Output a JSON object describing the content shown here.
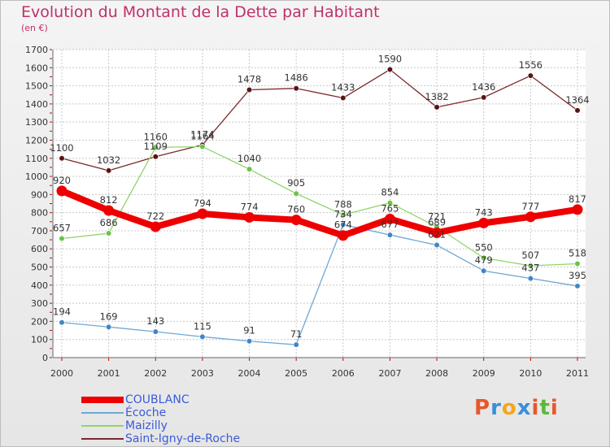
{
  "header": {
    "title": "Evolution du Montant de la Dette par Habitant",
    "subtitle": "(en €)"
  },
  "logo": {
    "text": "Proxiti",
    "colors": [
      "#e8572b",
      "#3a8fd9",
      "#f2a81d",
      "#3a8fd9",
      "#e8572b",
      "#5cb83a",
      "#e8572b"
    ]
  },
  "chart_data": {
    "type": "line",
    "x": [
      "2000",
      "2001",
      "2002",
      "2003",
      "2004",
      "2005",
      "2006",
      "2007",
      "2008",
      "2009",
      "2010",
      "2011"
    ],
    "ylim": [
      0,
      1700
    ],
    "yticks": [
      0,
      100,
      200,
      300,
      400,
      500,
      600,
      700,
      800,
      900,
      1000,
      1100,
      1200,
      1300,
      1400,
      1500,
      1600,
      1700
    ],
    "grid": true,
    "legend_position": "bottom-left",
    "series": [
      {
        "name": "Saint-Igny-de-Roche",
        "color": "#7a2a2a",
        "marker": "#5a1414",
        "values": [
          1100,
          1032,
          1109,
          1174,
          1478,
          1486,
          1433,
          1590,
          1382,
          1436,
          1556,
          1364
        ]
      },
      {
        "name": "Maizilly",
        "color": "#92d36a",
        "marker": "#6cc24a",
        "values": [
          657,
          686,
          1160,
          1164,
          1040,
          905,
          788,
          854,
          721,
          550,
          507,
          518
        ]
      },
      {
        "name": "Écoche",
        "color": "#6fa8d6",
        "marker": "#3f86c8",
        "values": [
          194,
          169,
          143,
          115,
          91,
          71,
          734,
          677,
          621,
          479,
          437,
          395
        ]
      },
      {
        "name": "COUBLANC",
        "color": "#ee0000",
        "marker": "#ee0000",
        "values": [
          920,
          812,
          722,
          794,
          774,
          760,
          674,
          765,
          689,
          743,
          777,
          817
        ]
      }
    ],
    "data_labels": [
      {
        "series": "Saint-Igny-de-Roche",
        "texts": [
          "1100",
          "1032",
          "1109",
          "1174",
          "1478",
          "1486",
          "1433",
          "1590",
          "1382",
          "1436",
          "1556",
          "1364"
        ]
      },
      {
        "series": "Maizilly",
        "texts": [
          "657",
          "686",
          "1160",
          "1164",
          "1040",
          "905",
          "788",
          "854",
          "721",
          "550",
          "507",
          "518"
        ]
      },
      {
        "series": "Écoche",
        "texts": [
          "194",
          "169",
          "143",
          "115",
          "91",
          "71",
          "734",
          "677",
          "621",
          "479",
          "437",
          "395"
        ]
      },
      {
        "series": "COUBLANC",
        "texts": [
          "920",
          "812",
          "722",
          "794",
          "774",
          "760",
          "674",
          "765",
          "689",
          "743",
          "777",
          "817"
        ]
      }
    ]
  },
  "legend": [
    {
      "label": "COUBLANC",
      "color": "#ee0000",
      "thick": true
    },
    {
      "label": "Écoche",
      "color": "#6fa8d6",
      "thick": false
    },
    {
      "label": "Maizilly",
      "color": "#92d36a",
      "thick": false
    },
    {
      "label": "Saint-Igny-de-Roche",
      "color": "#7a2a2a",
      "thick": false
    }
  ]
}
